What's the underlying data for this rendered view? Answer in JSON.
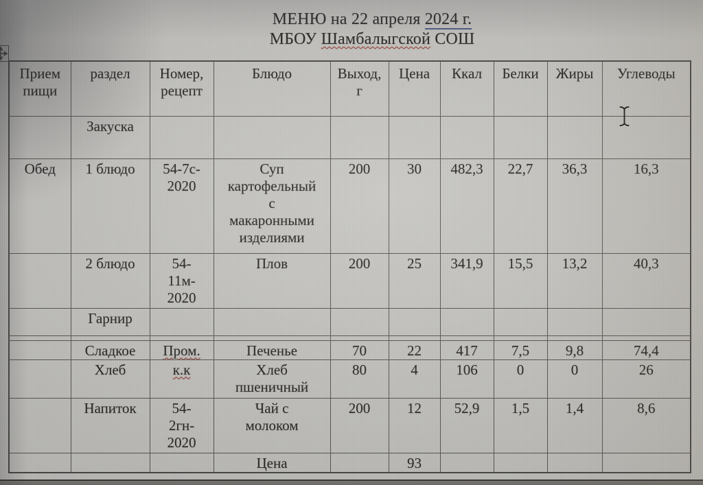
{
  "page": {
    "title": {
      "prefix": "МЕНЮ на 22 апреля ",
      "underlined": "2024 г."
    },
    "subtitle": {
      "prefix": "МБОУ ",
      "misspelled": "Шамбалыгской",
      "suffix": " СОШ"
    }
  },
  "icons": {
    "table_move_handle": "four-way-move-arrows",
    "text_cursor": "i-beam-pointer"
  },
  "menu_table": {
    "columns": [
      "Прием\nпищи",
      "раздел",
      "Номер,\nрецепт",
      "Блюдо",
      "Выход,\nг",
      "Цена",
      "Ккал",
      "Белки",
      "Жиры",
      "Углеводы"
    ],
    "rows": [
      {
        "cells": [
          "",
          "Закуска",
          "",
          "",
          "",
          "",
          "",
          "",
          "",
          ""
        ]
      },
      {
        "cells": [
          "Обед",
          "1 блюдо",
          "54-7с-\n2020",
          "Суп\nкартофельный\nс\nмакаронными\nизделиями",
          "200",
          "30",
          "482,3",
          "22,7",
          "36,3",
          "16,3"
        ]
      },
      {
        "cells": [
          "",
          "2 блюдо",
          "54-\n11м-\n2020",
          "Плов",
          "200",
          "25",
          "341,9",
          "15,5",
          "13,2",
          "40,3"
        ]
      },
      {
        "cells": [
          "",
          "Гарнир",
          "",
          "",
          "",
          "",
          "",
          "",
          "",
          ""
        ]
      },
      {
        "cells": [
          "",
          "",
          "",
          "",
          "",
          "",
          "",
          "",
          "",
          ""
        ]
      },
      {
        "cells": [
          "",
          "Сладкое",
          "Пром.",
          "Печенье",
          "70",
          "22",
          "417",
          "7,5",
          "9,8",
          "74,4"
        ]
      },
      {
        "cells": [
          "",
          "Хлеб",
          "к.к",
          "Хлеб\nпшеничный",
          "80",
          "4",
          "106",
          "0",
          "0",
          "26"
        ]
      },
      {
        "cells": [
          "",
          "Напиток",
          "54-\n2гн-\n2020",
          "Чай с\nмолоком",
          "200",
          "12",
          "52,9",
          "1,5",
          "1,4",
          "8,6"
        ]
      },
      {
        "cells": [
          "",
          "",
          "",
          "Цена",
          "",
          "93",
          "",
          "",
          "",
          ""
        ]
      }
    ]
  }
}
